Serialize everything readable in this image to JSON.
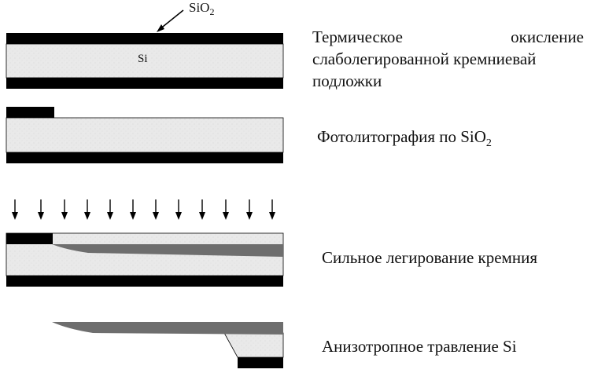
{
  "diagram": {
    "oxide_label_main": "SiO",
    "oxide_label_sub": "2",
    "substrate_label": "Si"
  },
  "steps": [
    {
      "line1_left": "Термическое",
      "line1_right": "окисление",
      "line2": "слаболегированной кремниевай",
      "line3": "подложки"
    },
    {
      "text_main": "Фотолитография по SiO",
      "text_sub": "2"
    },
    {
      "text": "Сильное легирование кремния"
    },
    {
      "text": "Анизотропное травление Si"
    }
  ],
  "colors": {
    "layer_black": "#000000",
    "silicon_fill": "#e8e8e8",
    "doped_fill": "#6e6e6e"
  }
}
